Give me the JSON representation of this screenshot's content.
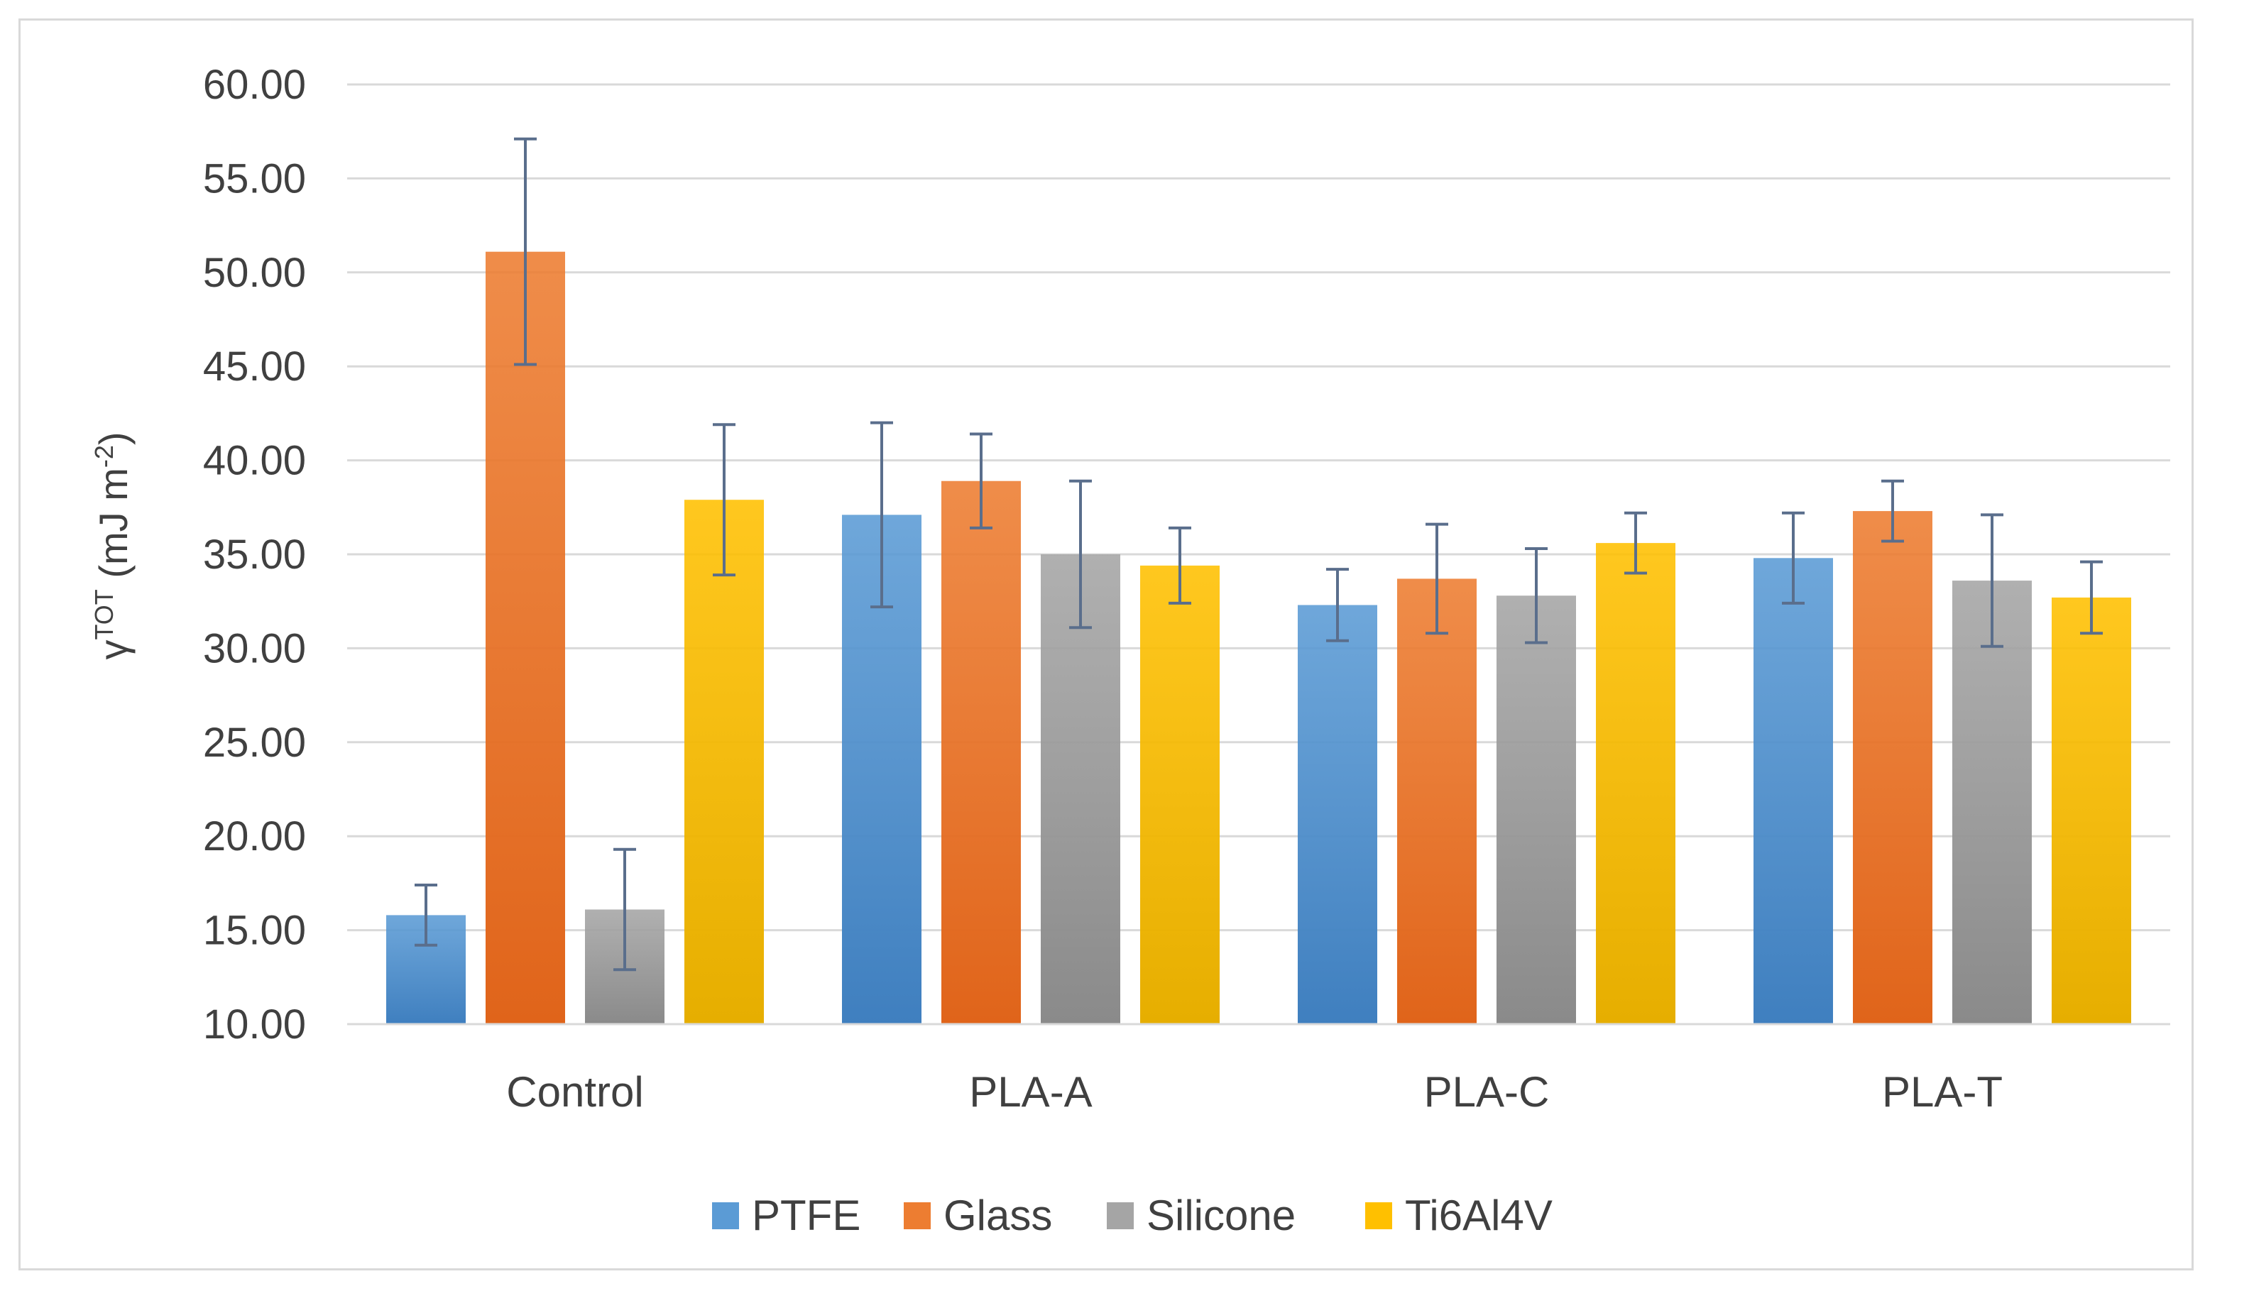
{
  "chart_data": {
    "type": "bar",
    "title": "",
    "xlabel": "",
    "ylabel": {
      "base": "γ",
      "base_sup": "TOT",
      "unit_open": " (mJ m",
      "unit_sup": "-2",
      "unit_close": ")"
    },
    "ylim": [
      10,
      60
    ],
    "yticks": [
      "10.00",
      "15.00",
      "20.00",
      "25.00",
      "30.00",
      "35.00",
      "40.00",
      "45.00",
      "50.00",
      "55.00",
      "60.00"
    ],
    "ytick_values": [
      10,
      15,
      20,
      25,
      30,
      35,
      40,
      45,
      50,
      55,
      60
    ],
    "grid": true,
    "legend_position": "bottom",
    "categories": [
      "Control",
      "PLA-A",
      "PLA-C",
      "PLA-T"
    ],
    "series": [
      {
        "name": "PTFE",
        "color": "#5b9bd5",
        "color_dark": "#3f7fbf",
        "values": [
          15.8,
          37.1,
          32.3,
          34.8
        ],
        "errors": [
          1.6,
          4.9,
          1.9,
          2.4
        ]
      },
      {
        "name": "Glass",
        "color": "#ed7d31",
        "color_dark": "#e0641a",
        "values": [
          51.1,
          38.9,
          33.7,
          37.3
        ],
        "errors": [
          6.0,
          2.5,
          2.9,
          1.6
        ]
      },
      {
        "name": "Silicone",
        "color": "#a5a5a5",
        "color_dark": "#8a8a8a",
        "values": [
          16.1,
          35.0,
          32.8,
          33.6
        ],
        "errors": [
          3.2,
          3.9,
          2.5,
          3.5
        ]
      },
      {
        "name": "Ti6Al4V",
        "color": "#ffc000",
        "color_dark": "#e6ae00",
        "values": [
          37.9,
          34.4,
          35.6,
          32.7
        ],
        "errors": [
          4.0,
          2.0,
          1.6,
          1.9
        ]
      }
    ],
    "gridline_color": "#d9d9d9",
    "errorbar_color": "#5a6e8c"
  }
}
